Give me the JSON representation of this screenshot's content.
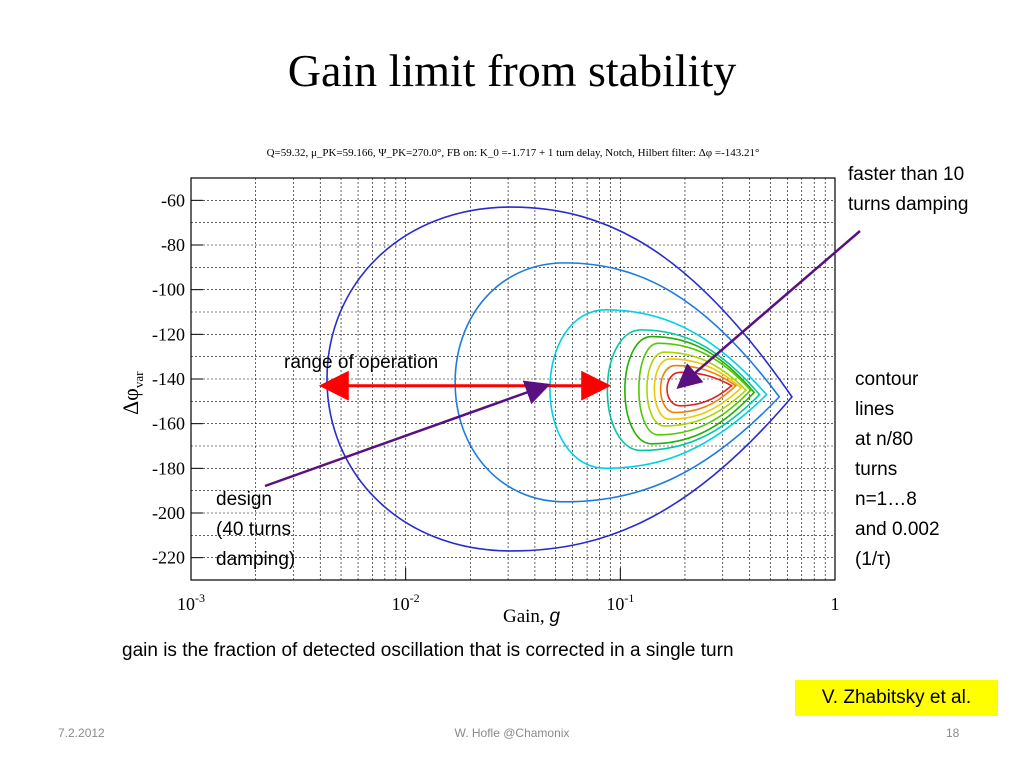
{
  "slide": {
    "title": "Gain limit from stability",
    "bottom_note": "gain is the fraction of detected oscillation that is corrected in a single turn",
    "citation": "V. Zhabitsky et al.",
    "footer": {
      "date": "7.2.2012",
      "center": "W. Hofle    @Chamonix",
      "page": "18"
    },
    "annotations": {
      "faster": [
        "faster than 10",
        "turns damping"
      ],
      "range": "range of operation",
      "contour": [
        "contour",
        "lines",
        "at n/80",
        "turns",
        "n=1…8",
        "and 0.002",
        "(1/τ)"
      ],
      "design": [
        "design",
        "(40 turns",
        "damping)"
      ]
    }
  },
  "chart_data": {
    "type": "contour",
    "header": "Q=59.32,  μ_PK=59.166,  Ψ_PK=270.0°, FB on: K_0 =-1.717 + 1 turn delay, Notch, Hilbert filter:  Δφ =-143.21°",
    "xlabel": "Gain, g",
    "ylabel": "Δφ_var",
    "x_scale": "log",
    "xlim": [
      0.001,
      1
    ],
    "ylim": [
      -230,
      -50
    ],
    "x_ticks": [
      "10^-3",
      "10^-2",
      "10^-1",
      "1"
    ],
    "y_ticks": [
      -60,
      -80,
      -100,
      -120,
      -140,
      -160,
      -180,
      -200,
      -220
    ],
    "grid": true,
    "contours": [
      {
        "color": "#2b2bd0",
        "x_min": 0.0043,
        "x_max": 0.63,
        "y_top": -63,
        "y_bottom": -217,
        "x_top": 0.031,
        "y_tip": -148
      },
      {
        "color": "#1e7be0",
        "x_min": 0.017,
        "x_max": 0.55,
        "y_top": -88,
        "y_bottom": -195,
        "x_top": 0.055,
        "y_tip": -148
      },
      {
        "color": "#00d0e8",
        "x_min": 0.047,
        "x_max": 0.48,
        "y_top": -109,
        "y_bottom": -180,
        "x_top": 0.085,
        "y_tip": -147
      },
      {
        "color": "#00c8a0",
        "x_min": 0.087,
        "x_max": 0.445,
        "y_top": -118,
        "y_bottom": -172,
        "x_top": 0.125,
        "y_tip": -147
      },
      {
        "color": "#22b000",
        "x_min": 0.105,
        "x_max": 0.42,
        "y_top": -121,
        "y_bottom": -169,
        "x_top": 0.14,
        "y_tip": -146
      },
      {
        "color": "#52c800",
        "x_min": 0.122,
        "x_max": 0.405,
        "y_top": -124,
        "y_bottom": -165,
        "x_top": 0.15,
        "y_tip": -145
      },
      {
        "color": "#a8d800",
        "x_min": 0.133,
        "x_max": 0.385,
        "y_top": -128,
        "y_bottom": -161,
        "x_top": 0.16,
        "y_tip": -145
      },
      {
        "color": "#f0c800",
        "x_min": 0.144,
        "x_max": 0.365,
        "y_top": -131,
        "y_bottom": -158,
        "x_top": 0.17,
        "y_tip": -144
      },
      {
        "color": "#f08000",
        "x_min": 0.154,
        "x_max": 0.345,
        "y_top": -134,
        "y_bottom": -155,
        "x_top": 0.18,
        "y_tip": -143
      },
      {
        "color": "#e02020",
        "x_min": 0.165,
        "x_max": 0.33,
        "y_top": -137,
        "y_bottom": -152,
        "x_top": 0.19,
        "y_tip": -143
      }
    ],
    "range_of_operation": {
      "g_from": 0.0042,
      "g_to": 0.085,
      "phi": -143
    },
    "marked_points": {
      "design": {
        "g": 0.045,
        "phi": -143
      },
      "faster_than_10_turns": {
        "g": 0.19,
        "phi": -143
      }
    },
    "colors": {
      "range_arrow": "#ff0000",
      "pointer_arrow": "#5a1080"
    }
  }
}
